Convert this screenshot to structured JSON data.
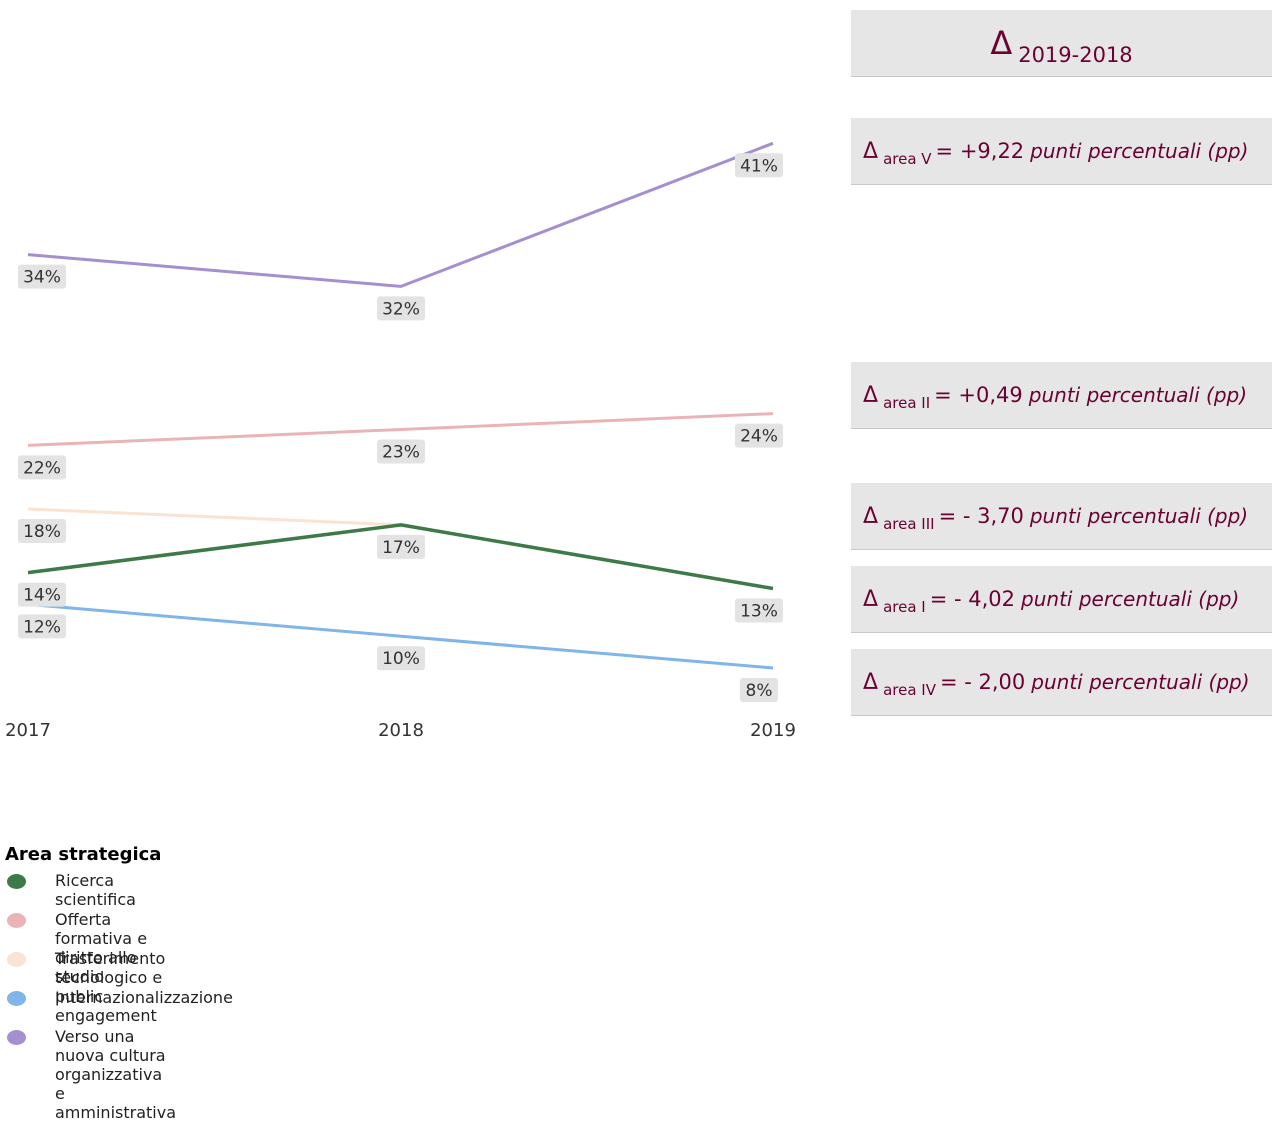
{
  "chart_data": {
    "type": "line",
    "x": [
      "2017",
      "2018",
      "2019"
    ],
    "series": [
      {
        "name": "Verso una nuova cultura organizzativa e amministrativa",
        "color": "#a58fd0",
        "values": [
          34,
          32,
          41
        ],
        "labels": [
          "34%",
          "32%",
          "41%"
        ]
      },
      {
        "name": "Offerta formativa e diritto allo studio",
        "color": "#eab4b6",
        "values": [
          22,
          23,
          24
        ],
        "labels": [
          "22%",
          "23%",
          "24%"
        ]
      },
      {
        "name": "Trasferimento tecnologico e public engagement",
        "color": "#fbe3d2",
        "values": [
          18,
          17,
          13
        ],
        "labels": [
          "18%",
          "17%",
          ""
        ]
      },
      {
        "name": "Ricerca scientifica",
        "color": "#3d7a47",
        "values": [
          14,
          17,
          13
        ],
        "labels": [
          "14%",
          "",
          "13%"
        ]
      },
      {
        "name": "Internazionalizzazione",
        "color": "#7fb5e8",
        "values": [
          12,
          10,
          8
        ],
        "labels": [
          "12%",
          "10%",
          "8%"
        ]
      }
    ],
    "xlabel": "",
    "ylabel": "",
    "grid": false
  },
  "legend": {
    "title": "Area strategica",
    "items": [
      {
        "label": "Ricerca scientifica",
        "color": "#3d7a47"
      },
      {
        "label": "Offerta formativa e diritto allo studio",
        "color": "#eab4b6"
      },
      {
        "label": "Trasferimento tecnologico e public engagement",
        "color": "#fbe3d2"
      },
      {
        "label": "Internazionalizzazione",
        "color": "#7fb5e8"
      },
      {
        "label": "Verso una nuova cultura organizzativa e amministrativa",
        "color": "#a58fd0"
      }
    ]
  },
  "deltas": {
    "header": {
      "symbol": "Δ",
      "subscript": "2019-2018"
    },
    "rows": [
      {
        "symbol": "Δ",
        "sub": "area V",
        "value": "= +9,22",
        "unit": "punti percentuali (pp)"
      },
      {
        "symbol": "Δ",
        "sub": "area II",
        "value": "= +0,49",
        "unit": "punti percentuali (pp)"
      },
      {
        "symbol": "Δ",
        "sub": "area III",
        "value": "= - 3,70",
        "unit": "punti percentuali (pp)"
      },
      {
        "symbol": "Δ",
        "sub": "area I",
        "value": "= - 4,02",
        "unit": "punti percentuali (pp)"
      },
      {
        "symbol": "Δ",
        "sub": "area IV",
        "value": "= - 2,00",
        "unit": "punti percentuali (pp)"
      }
    ]
  }
}
